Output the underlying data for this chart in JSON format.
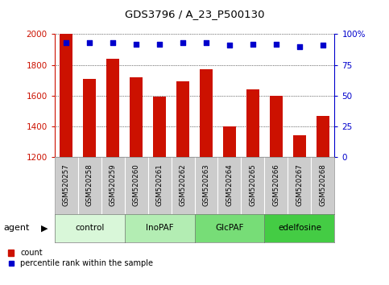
{
  "title": "GDS3796 / A_23_P500130",
  "samples": [
    "GSM520257",
    "GSM520258",
    "GSM520259",
    "GSM520260",
    "GSM520261",
    "GSM520262",
    "GSM520263",
    "GSM520264",
    "GSM520265",
    "GSM520266",
    "GSM520267",
    "GSM520268"
  ],
  "counts": [
    2000,
    1710,
    1840,
    1720,
    1595,
    1695,
    1770,
    1400,
    1640,
    1600,
    1340,
    1465
  ],
  "percentiles": [
    93,
    93,
    93,
    92,
    92,
    93,
    93,
    91,
    92,
    92,
    90,
    91
  ],
  "ylim_left": [
    1200,
    2000
  ],
  "ylim_right": [
    0,
    100
  ],
  "yticks_left": [
    1200,
    1400,
    1600,
    1800,
    2000
  ],
  "yticks_right": [
    0,
    25,
    50,
    75,
    100
  ],
  "bar_color": "#cc1100",
  "dot_color": "#0000cc",
  "agent_groups": [
    {
      "label": "control",
      "start": 0,
      "end": 3,
      "color": "#d9f7d9"
    },
    {
      "label": "InoPAF",
      "start": 3,
      "end": 6,
      "color": "#b3edb3"
    },
    {
      "label": "GlcPAF",
      "start": 6,
      "end": 9,
      "color": "#77dd77"
    },
    {
      "label": "edelfosine",
      "start": 9,
      "end": 12,
      "color": "#44cc44"
    }
  ],
  "legend_count_label": "count",
  "legend_pct_label": "percentile rank within the sample",
  "left_axis_color": "#cc1100",
  "right_axis_color": "#0000cc",
  "xtick_bg_color": "#cccccc",
  "agent_label": "agent"
}
